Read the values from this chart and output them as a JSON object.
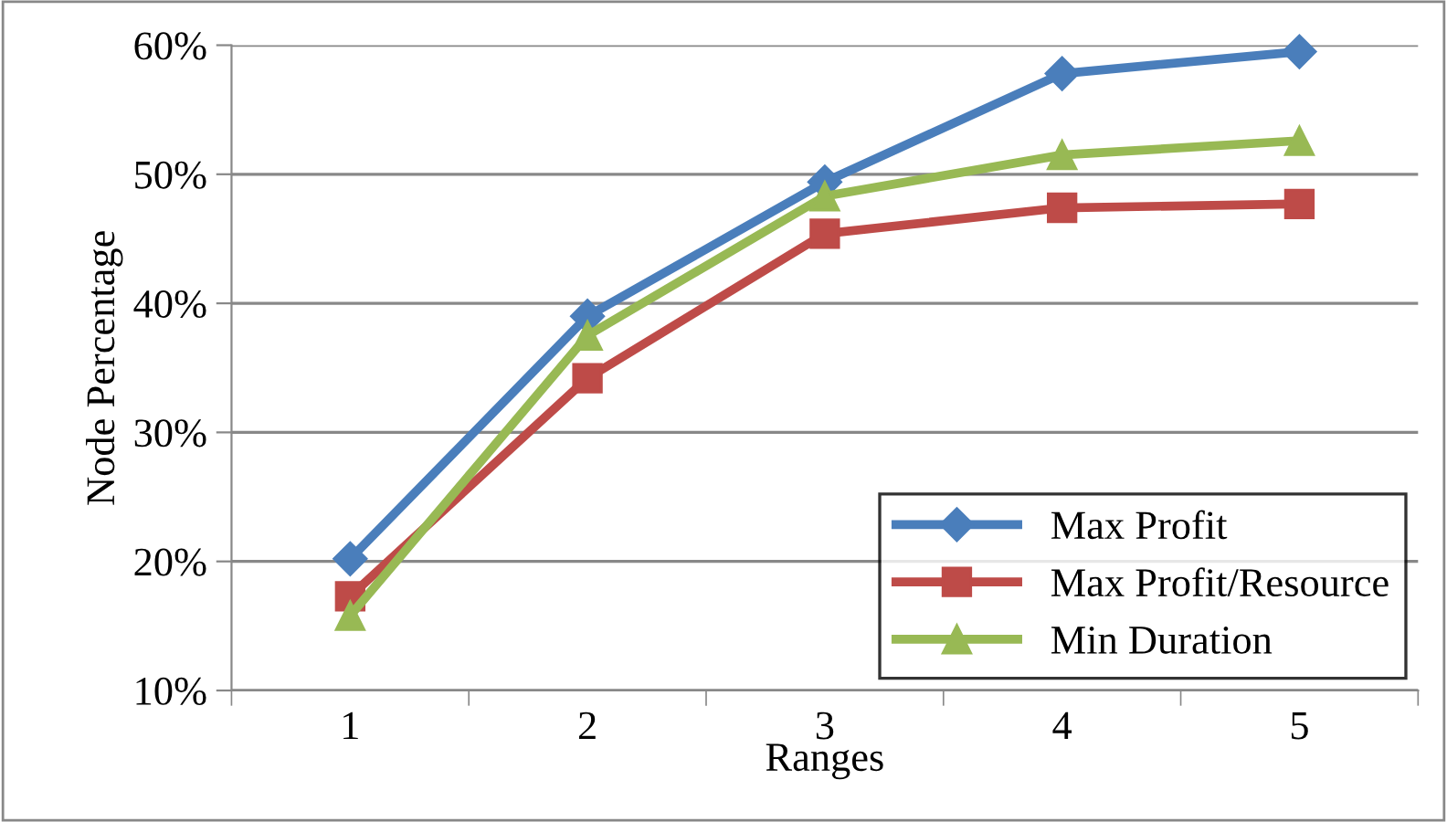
{
  "chart_data": {
    "type": "line",
    "xlabel": "Ranges",
    "ylabel": "Node Percentage",
    "categories": [
      "1",
      "2",
      "3",
      "4",
      "5"
    ],
    "ylim": [
      0.1,
      0.6
    ],
    "yticks": [
      {
        "value": 0.1,
        "label": "10%"
      },
      {
        "value": 0.2,
        "label": "20%"
      },
      {
        "value": 0.3,
        "label": "30%"
      },
      {
        "value": 0.4,
        "label": "40%"
      },
      {
        "value": 0.5,
        "label": "50%"
      },
      {
        "value": 0.6,
        "label": "60%"
      }
    ],
    "grid": "y",
    "legend": "bottom right",
    "series": [
      {
        "name": "Max Profit",
        "color": "#4a7ebb",
        "marker": "diamond",
        "values": [
          0.202,
          0.39,
          0.494,
          0.578,
          0.595
        ]
      },
      {
        "name": "Max Profit/Resource",
        "color": "#be4b48",
        "marker": "square",
        "values": [
          0.173,
          0.342,
          0.454,
          0.474,
          0.477
        ]
      },
      {
        "name": "Min Duration",
        "color": "#98b954",
        "marker": "triangle",
        "values": [
          0.158,
          0.375,
          0.483,
          0.515,
          0.526
        ]
      }
    ]
  }
}
